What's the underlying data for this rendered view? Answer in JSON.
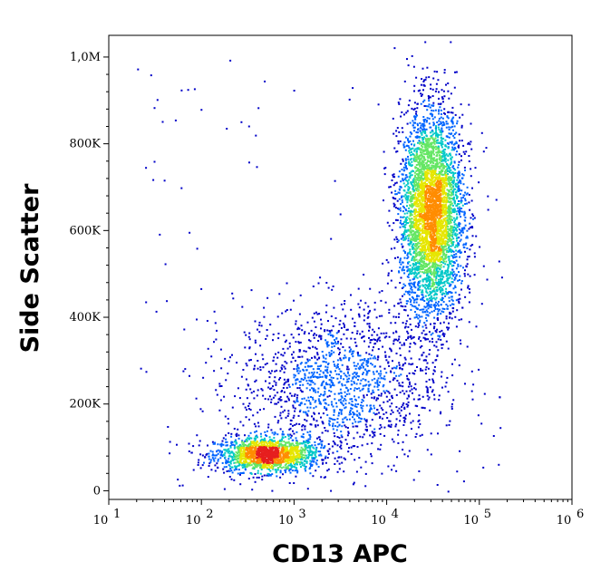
{
  "chart_data": {
    "type": "scatter",
    "title": "",
    "xlabel": "CD13 APC",
    "ylabel": "Side Scatter",
    "x_scale": "log",
    "xlim": [
      10,
      1000000
    ],
    "ylim": [
      -20000,
      1050000
    ],
    "x_ticks": [
      {
        "value": 10,
        "base": "10",
        "exp": "1"
      },
      {
        "value": 100,
        "base": "10",
        "exp": "2"
      },
      {
        "value": 1000,
        "base": "10",
        "exp": "3"
      },
      {
        "value": 10000,
        "base": "10",
        "exp": "4"
      },
      {
        "value": 100000,
        "base": "10",
        "exp": "5"
      },
      {
        "value": 1000000,
        "base": "10",
        "exp": "6"
      }
    ],
    "y_ticks": [
      {
        "value": 0,
        "label": "0"
      },
      {
        "value": 200000,
        "label": "200K"
      },
      {
        "value": 400000,
        "label": "400K"
      },
      {
        "value": 600000,
        "label": "600K"
      },
      {
        "value": 800000,
        "label": "800K"
      },
      {
        "value": 1000000,
        "label": "1,0M"
      }
    ],
    "grid": false,
    "density_colors": [
      "#0000c8",
      "#0064ff",
      "#00c8c8",
      "#64e664",
      "#e6e600",
      "#ff8c00",
      "#e61e1e"
    ],
    "populations": [
      {
        "name": "",
        "cx": 500,
        "cy": 85000,
        "sx_log10": 0.28,
        "sy": 20000,
        "n": 1600
      },
      {
        "name": "",
        "cx": 30000,
        "cy": 640000,
        "sx_log10": 0.17,
        "sy": 120000,
        "n": 4200
      },
      {
        "name": "",
        "cx": 3000,
        "cy": 250000,
        "sx_log10": 0.55,
        "sy": 90000,
        "n": 1500
      }
    ]
  }
}
